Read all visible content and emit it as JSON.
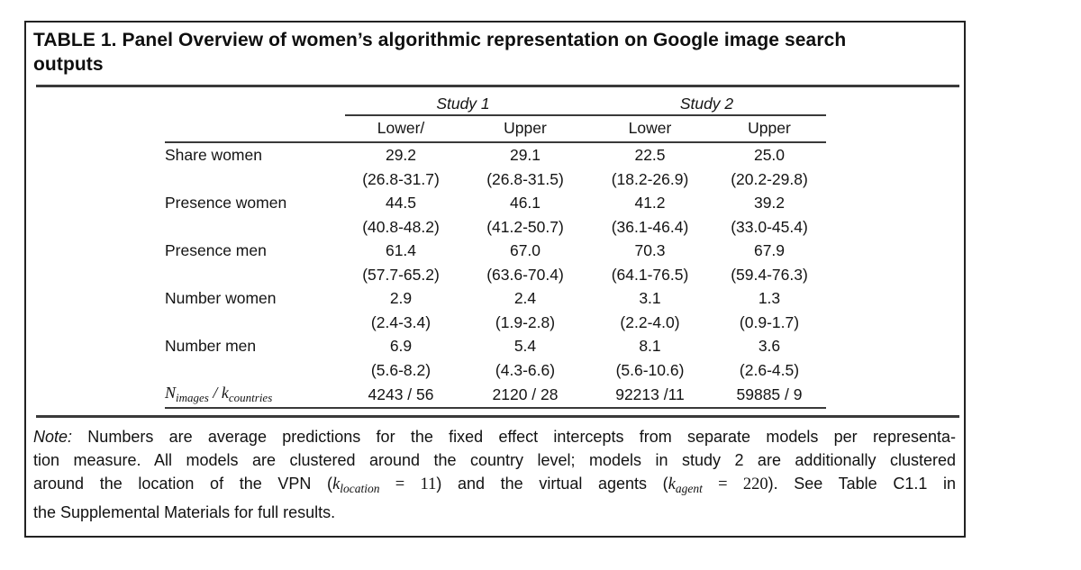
{
  "panel": {
    "title_line1": "TABLE 1. Panel Overview of women’s algorithmic representation on Google image search",
    "title_line2": "outputs"
  },
  "table": {
    "spanners": {
      "study1": "Study 1",
      "study2": "Study 2"
    },
    "subheaders": [
      "Lower/",
      "Upper",
      "Lower",
      "Upper"
    ],
    "rows": [
      {
        "label": "Share women",
        "est": [
          "29.2",
          "29.1",
          "22.5",
          "25.0"
        ],
        "ci": [
          "(26.8-31.7)",
          "(26.8-31.5)",
          "(18.2-26.9)",
          "(20.2-29.8)"
        ]
      },
      {
        "label": "Presence women",
        "est": [
          "44.5",
          "46.1",
          "41.2",
          "39.2"
        ],
        "ci": [
          "(40.8-48.2)",
          "(41.2-50.7)",
          "(36.1-46.4)",
          "(33.0-45.4)"
        ]
      },
      {
        "label": "Presence men",
        "est": [
          "61.4",
          "67.0",
          "70.3",
          "67.9"
        ],
        "ci": [
          "(57.7-65.2)",
          "(63.6-70.4)",
          "(64.1-76.5)",
          "(59.4-76.3)"
        ]
      },
      {
        "label": "Number women",
        "est": [
          "2.9",
          "2.4",
          "3.1",
          "1.3"
        ],
        "ci": [
          "(2.4-3.4)",
          "(1.9-2.8)",
          "(2.2-4.0)",
          "(0.9-1.7)"
        ]
      },
      {
        "label": "Number men",
        "est": [
          "6.9",
          "5.4",
          "8.1",
          "3.6"
        ],
        "ci": [
          "(5.6-8.2)",
          "(4.3-6.6)",
          "(5.6-10.6)",
          "(2.6-4.5)"
        ]
      }
    ],
    "n_row": {
      "sym1": "N",
      "sub1": "images",
      "sep": " / ",
      "sym2": "k",
      "sub2": "countries",
      "values": [
        "4243 / 56",
        "2120 / 28",
        "92213 /11",
        "59885 / 9"
      ]
    }
  },
  "note": {
    "label": "Note:",
    "line1_rest": " Numbers are average predictions for the fixed effect intercepts from separate models per representa-",
    "line2": "tion measure. All models are clustered around the country level; models in study 2 are additionally clustered",
    "line3": {
      "t1": "around the location of the VPN (",
      "m1sym": "k",
      "m1sub": "location",
      "m1rest": " = 11",
      "t2": ") and the virtual agents (",
      "m2sym": "k",
      "m2sub": "agent",
      "m2rest": " = 220",
      "t3": "). See Table C1.1 in"
    },
    "line4": "the Supplemental Materials for full results."
  },
  "colors": {
    "text": "#141414",
    "rule": "#3a3a3a",
    "border": "#222222",
    "background": "#ffffff"
  }
}
